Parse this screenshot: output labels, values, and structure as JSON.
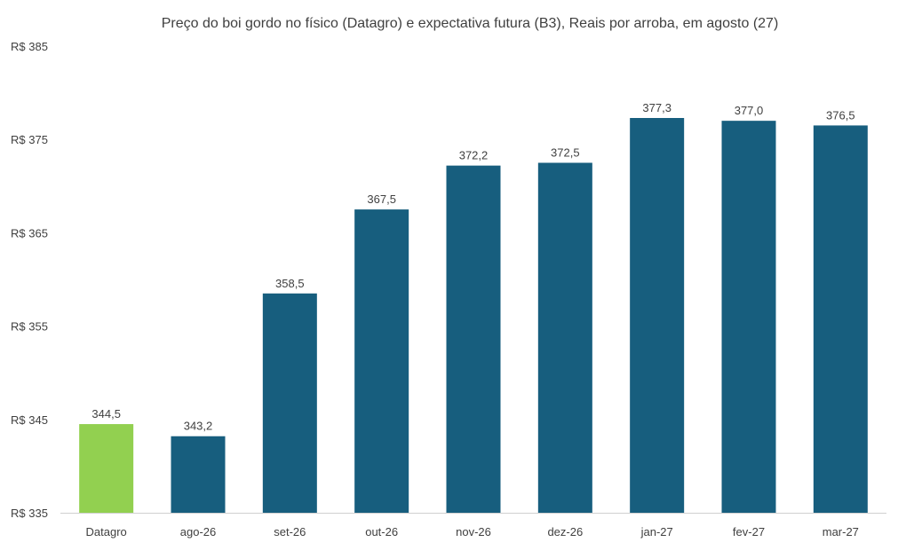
{
  "chart_data": {
    "type": "bar",
    "title": "Preço do boi gordo no físico (Datagro)  e expectativa futura (B3), Reais por arroba, em agosto (27)",
    "categories": [
      "Datagro",
      "ago-26",
      "set-26",
      "out-26",
      "nov-26",
      "dez-26",
      "jan-27",
      "fev-27",
      "mar-27"
    ],
    "values": [
      344.5,
      343.2,
      358.5,
      367.5,
      372.2,
      372.5,
      377.3,
      377.0,
      376.5
    ],
    "value_labels": [
      "344,5",
      "343,2",
      "358,5",
      "367,5",
      "372,2",
      "372,5",
      "377,3",
      "377,0",
      "376,5"
    ],
    "ylim": [
      335,
      385
    ],
    "yticks": [
      335,
      345,
      355,
      365,
      375,
      385
    ],
    "ytick_labels": [
      "R$ 335",
      "R$ 345",
      "R$ 355",
      "R$ 365",
      "R$ 375",
      "R$ 385"
    ],
    "xlabel": "",
    "ylabel": "",
    "grid": false,
    "legend": "none",
    "colors": {
      "highlight": "#92d050",
      "default": "#175e7e",
      "text": "#404040",
      "axis": "#d0d0d0"
    },
    "highlight_index": 0
  }
}
